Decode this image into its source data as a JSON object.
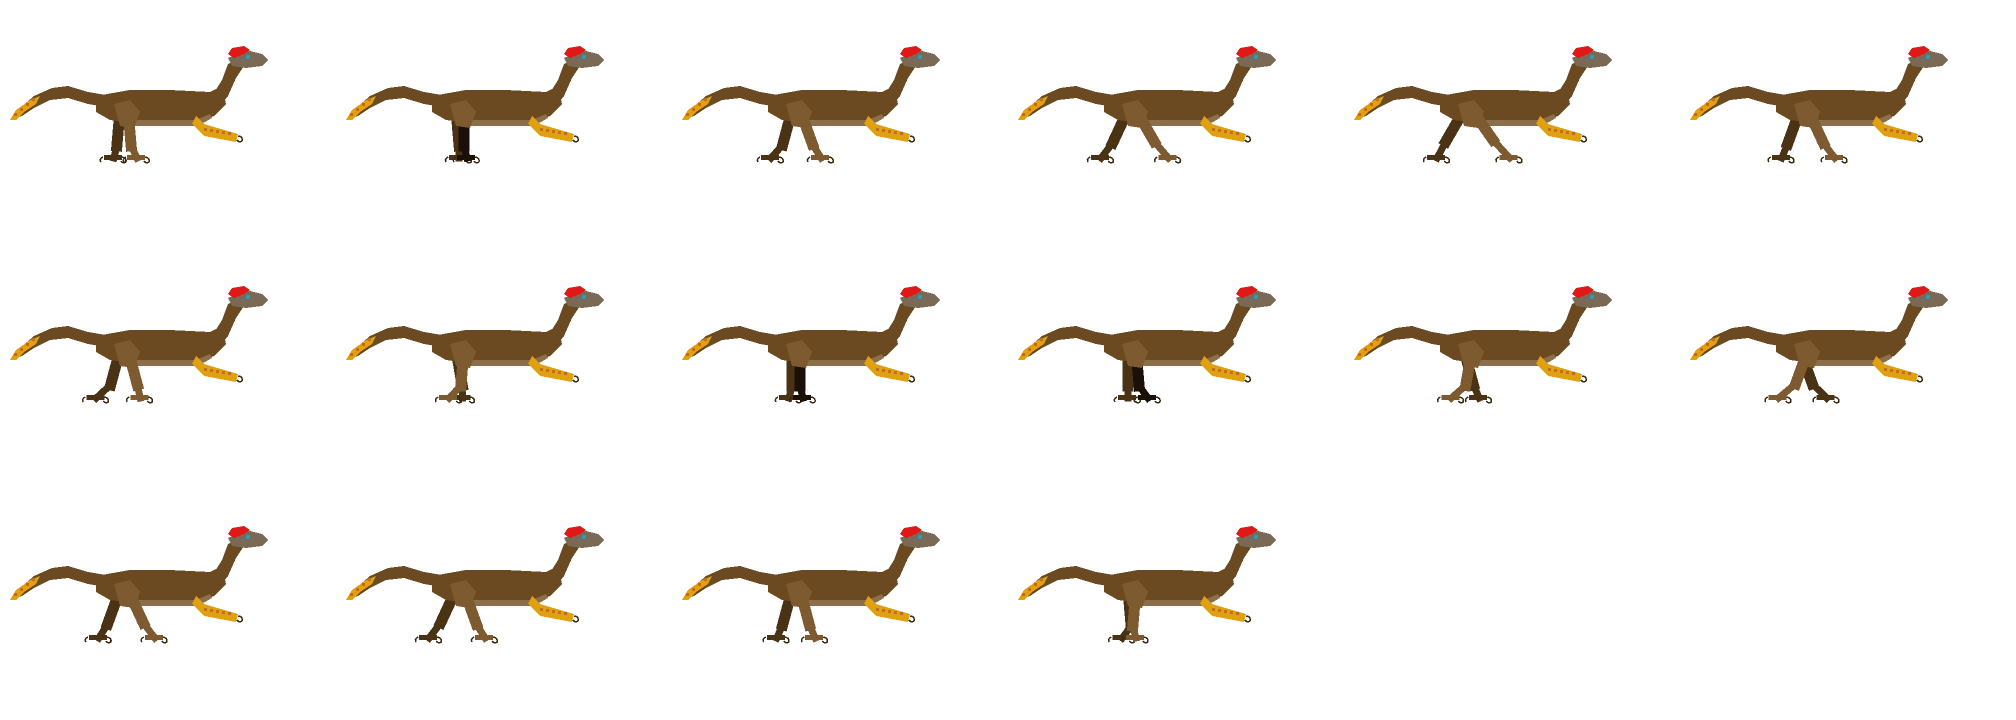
{
  "sprite_sheet": {
    "columns": 6,
    "rows": 3,
    "frame_count": 16,
    "subject": "raptor-dinosaur",
    "animation": "walk-cycle",
    "background": "#ffffff",
    "palette": {
      "body": "#6b4a22",
      "body_light": "#7d5a30",
      "belly": "#8b6e4a",
      "leg_far": "#4a3315",
      "leg_dark": "#1a1008",
      "crest": "#e01818",
      "head": "#7a6a55",
      "eye": "#1fa0c0",
      "feather": "#e0a010",
      "feather_tip": "#c07010",
      "claw": "#ffffff",
      "outline": "#3a2810"
    },
    "icons": {
      "frame": "raptor-sprite-icon"
    }
  }
}
